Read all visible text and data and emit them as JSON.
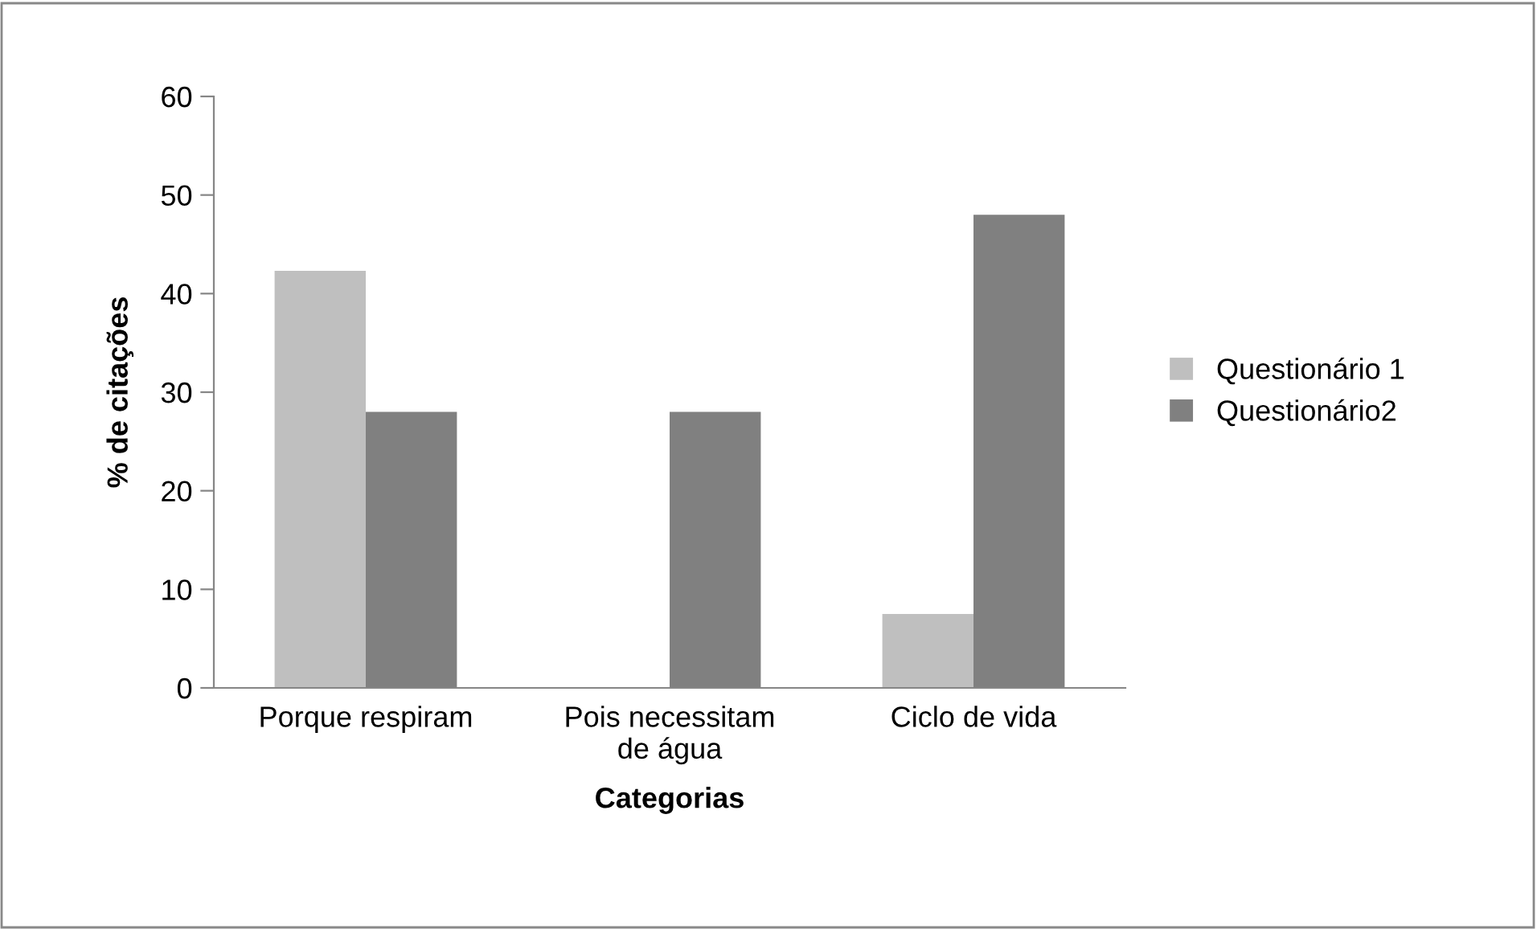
{
  "chart_data": {
    "type": "bar",
    "xlabel": "Categorias",
    "ylabel": "% de citações",
    "categories": [
      "Porque respiram",
      "Pois necessitam\nde água",
      "Ciclo de vida"
    ],
    "series": [
      {
        "name": "Questionário 1",
        "color": "#bfbfbf",
        "values": [
          42.3,
          0,
          7.5
        ]
      },
      {
        "name": "Questionário2",
        "color": "#808080",
        "values": [
          28,
          28,
          48
        ]
      }
    ],
    "ylim": [
      0,
      60
    ],
    "yticks": [
      0,
      10,
      20,
      30,
      40,
      50,
      60
    ],
    "grid": false,
    "legend": "right"
  }
}
